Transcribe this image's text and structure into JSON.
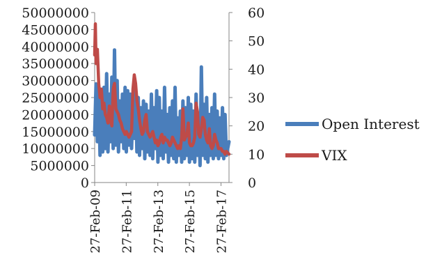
{
  "chart_data": {
    "type": "line",
    "x_labels": [
      "27-Feb-09",
      "27-Feb-11",
      "27-Feb-13",
      "27-Feb-15",
      "27-Feb-17"
    ],
    "x_range": [
      "2009-02-27",
      "2017-08-31"
    ],
    "y_left_ticks": [
      "0",
      "5000000",
      "10000000",
      "15000000",
      "20000000",
      "25000000",
      "30000000",
      "35000000",
      "40000000",
      "45000000",
      "50000000"
    ],
    "y_right_ticks": [
      "0",
      "10",
      "20",
      "30",
      "40",
      "50",
      "60"
    ],
    "y_left_range": [
      0,
      50000000
    ],
    "y_right_range": [
      0,
      60
    ],
    "gridlines": false,
    "legend_position": "right",
    "series": [
      {
        "name": "Open Interest",
        "axis": "left",
        "color": "#4A7EBB",
        "x": [
          "2009-02-27",
          "2009-04-01",
          "2009-05-01",
          "2009-06-01",
          "2009-07-01",
          "2009-08-01",
          "2009-09-01",
          "2009-10-01",
          "2009-11-01",
          "2009-12-01",
          "2010-01-01",
          "2010-02-01",
          "2010-03-01",
          "2010-04-01",
          "2010-05-01",
          "2010-06-01",
          "2010-07-01",
          "2010-08-01",
          "2010-09-01",
          "2010-10-01",
          "2010-11-01",
          "2010-12-01",
          "2011-01-01",
          "2011-02-01",
          "2011-03-01",
          "2011-04-01",
          "2011-05-01",
          "2011-06-01",
          "2011-07-01",
          "2011-08-01",
          "2011-09-01",
          "2011-10-01",
          "2011-11-01",
          "2011-12-01",
          "2012-01-01",
          "2012-02-01",
          "2012-03-01",
          "2012-04-01",
          "2012-05-01",
          "2012-06-01",
          "2012-07-01",
          "2012-08-01",
          "2012-09-01",
          "2012-10-01",
          "2012-11-01",
          "2012-12-01",
          "2013-01-01",
          "2013-02-01",
          "2013-03-01",
          "2013-04-01",
          "2013-05-01",
          "2013-06-01",
          "2013-07-01",
          "2013-08-01",
          "2013-09-01",
          "2013-10-01",
          "2013-11-01",
          "2013-12-01",
          "2014-01-01",
          "2014-02-01",
          "2014-03-01",
          "2014-04-01",
          "2014-05-01",
          "2014-06-01",
          "2014-07-01",
          "2014-08-01",
          "2014-09-01",
          "2014-10-01",
          "2014-11-01",
          "2014-12-01",
          "2015-01-01",
          "2015-02-01",
          "2015-03-01",
          "2015-04-01",
          "2015-05-01",
          "2015-06-01",
          "2015-07-01",
          "2015-08-01",
          "2015-09-01",
          "2015-10-01",
          "2015-11-01",
          "2015-12-01",
          "2016-01-01",
          "2016-02-01",
          "2016-03-01",
          "2016-04-01",
          "2016-05-01",
          "2016-06-01",
          "2016-07-01",
          "2016-08-01",
          "2016-09-01",
          "2016-10-01",
          "2016-11-01",
          "2016-12-01",
          "2017-01-01",
          "2017-02-01",
          "2017-03-01",
          "2017-04-01",
          "2017-05-01",
          "2017-06-01",
          "2017-07-01",
          "2017-08-31"
        ],
        "values": [
          14000000,
          29000000,
          12000000,
          27000000,
          8000000,
          25000000,
          9000000,
          28000000,
          10000000,
          32000000,
          9000000,
          26000000,
          12000000,
          31000000,
          10000000,
          39000000,
          11000000,
          30000000,
          9000000,
          24000000,
          12000000,
          26000000,
          10000000,
          28000000,
          9000000,
          27000000,
          11000000,
          26000000,
          10000000,
          24000000,
          13000000,
          27000000,
          9000000,
          25000000,
          8000000,
          22000000,
          10000000,
          24000000,
          7000000,
          23000000,
          9000000,
          21000000,
          8000000,
          26000000,
          7000000,
          22000000,
          10000000,
          27000000,
          6000000,
          25000000,
          8000000,
          21000000,
          7000000,
          28000000,
          9000000,
          20000000,
          6000000,
          22000000,
          8000000,
          24000000,
          7000000,
          28000000,
          6000000,
          19000000,
          8000000,
          21000000,
          6000000,
          24000000,
          7000000,
          22000000,
          8000000,
          25000000,
          6000000,
          23000000,
          7000000,
          21000000,
          6000000,
          26000000,
          8000000,
          20000000,
          5000000,
          34000000,
          8000000,
          23000000,
          7000000,
          25000000,
          6000000,
          20000000,
          8000000,
          22000000,
          7000000,
          26000000,
          8000000,
          21000000,
          7000000,
          19000000,
          8000000,
          22000000,
          7000000,
          20000000,
          8000000,
          12000000
        ]
      },
      {
        "name": "VIX",
        "axis": "right",
        "color": "#BE4B48",
        "x": [
          "2009-02-27",
          "2009-03-15",
          "2009-04-01",
          "2009-05-01",
          "2009-06-01",
          "2009-07-01",
          "2009-08-01",
          "2009-09-01",
          "2009-10-01",
          "2009-11-01",
          "2009-12-01",
          "2010-01-01",
          "2010-02-01",
          "2010-03-01",
          "2010-04-01",
          "2010-05-01",
          "2010-06-01",
          "2010-07-01",
          "2010-08-01",
          "2010-09-01",
          "2010-10-01",
          "2010-11-01",
          "2010-12-01",
          "2011-01-01",
          "2011-02-01",
          "2011-03-01",
          "2011-04-01",
          "2011-05-01",
          "2011-06-01",
          "2011-07-01",
          "2011-08-01",
          "2011-09-01",
          "2011-10-01",
          "2011-11-01",
          "2011-12-01",
          "2012-01-01",
          "2012-02-01",
          "2012-03-01",
          "2012-04-01",
          "2012-05-01",
          "2012-06-01",
          "2012-07-01",
          "2012-08-01",
          "2012-09-01",
          "2012-10-01",
          "2012-11-01",
          "2012-12-01",
          "2013-01-01",
          "2013-02-01",
          "2013-03-01",
          "2013-04-01",
          "2013-05-01",
          "2013-06-01",
          "2013-07-01",
          "2013-08-01",
          "2013-09-01",
          "2013-10-01",
          "2013-11-01",
          "2013-12-01",
          "2014-01-01",
          "2014-02-01",
          "2014-03-01",
          "2014-04-01",
          "2014-05-01",
          "2014-06-01",
          "2014-07-01",
          "2014-08-01",
          "2014-09-01",
          "2014-10-01",
          "2014-11-01",
          "2014-12-01",
          "2015-01-01",
          "2015-02-01",
          "2015-03-01",
          "2015-04-01",
          "2015-05-01",
          "2015-06-01",
          "2015-07-01",
          "2015-08-01",
          "2015-09-01",
          "2015-10-01",
          "2015-11-01",
          "2015-12-01",
          "2016-01-01",
          "2016-02-01",
          "2016-03-01",
          "2016-04-01",
          "2016-05-01",
          "2016-06-01",
          "2016-07-01",
          "2016-08-01",
          "2016-09-01",
          "2016-10-01",
          "2016-11-01",
          "2016-12-01",
          "2017-01-01",
          "2017-02-01",
          "2017-03-01",
          "2017-04-01",
          "2017-05-01",
          "2017-06-01",
          "2017-07-01",
          "2017-08-31"
        ],
        "values": [
          45,
          56,
          42,
          47,
          35,
          30,
          33,
          26,
          28,
          24,
          23,
          21,
          27,
          22,
          20,
          33,
          35,
          26,
          25,
          24,
          22,
          21,
          19,
          18,
          17,
          18,
          17,
          16,
          17,
          18,
          33,
          38,
          35,
          29,
          26,
          22,
          19,
          17,
          18,
          22,
          24,
          18,
          17,
          16,
          17,
          18,
          16,
          14,
          15,
          13,
          14,
          16,
          17,
          14,
          16,
          15,
          15,
          14,
          13,
          14,
          16,
          15,
          14,
          13,
          12,
          13,
          12,
          16,
          26,
          15,
          16,
          17,
          21,
          14,
          13,
          13,
          14,
          16,
          28,
          25,
          17,
          16,
          19,
          23,
          22,
          17,
          15,
          14,
          19,
          13,
          12,
          13,
          17,
          15,
          14,
          12,
          12,
          12,
          11,
          11,
          10,
          11,
          10
        ]
      }
    ]
  }
}
